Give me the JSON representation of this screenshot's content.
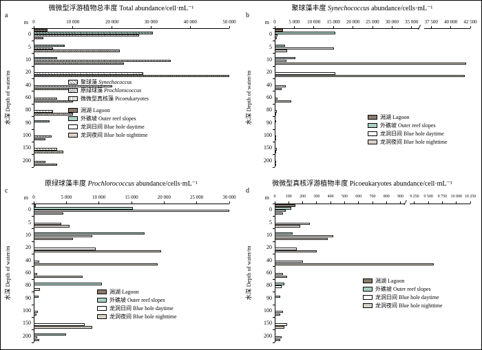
{
  "figure": {
    "y_axis_label": "水深 Depth of water/m",
    "y_unit": "m",
    "depth_labels": [
      "0",
      "5",
      "10",
      "20",
      "40",
      "60",
      "80",
      "90",
      "100",
      "150",
      "200"
    ]
  },
  "palette": {
    "lagoon": "#8a7a6d",
    "outer_reef_slopes": "#abcfc3",
    "blue_hole_daytime": "#ffffff",
    "blue_hole_nighttime": "#d9d1c7"
  },
  "chart_data": {
    "type": "bar",
    "orientation": "horizontal",
    "categories_depth_m": [
      0,
      5,
      10,
      20,
      40,
      60,
      80,
      90,
      100,
      150,
      200
    ],
    "panels": [
      {
        "letter": "a",
        "title_zh": "微微型浮游植物总丰度",
        "title_it": "",
        "title_rest": " Total abundance/cell·mL⁻¹",
        "x_ticks": [
          {
            "label": "0",
            "value": 0
          },
          {
            "label": "10 000",
            "value": 10000
          },
          {
            "label": "20 000",
            "value": 20000
          },
          {
            "label": "30 000",
            "value": 30000
          },
          {
            "label": "40 000",
            "value": 40000
          },
          {
            "label": "50 000",
            "value": 50000
          }
        ],
        "break_after": null,
        "series": [
          {
            "key": "a_lagoon",
            "name": "潟湖 Lagoon",
            "values": [
              3500,
              null,
              null,
              null,
              null,
              null,
              null,
              null,
              null,
              null,
              null
            ]
          },
          {
            "key": "a_outer",
            "name": "外礁坡 Outer reef slopes",
            "values": [
              30500,
              8000,
              6000,
              null,
              null,
              null,
              null,
              4000,
              null,
              null,
              null
            ]
          },
          {
            "key": "a_day",
            "name": "龙洞日间 Blue hole daytime",
            "values": [
              27000,
              5000,
              35000,
              28000,
              20000,
              6000,
              5000,
              null,
              4500,
              6000,
              3000
            ]
          },
          {
            "key": "a_night",
            "name": "龙洞夜间 Blue hole nighttime",
            "values": [
              2500,
              22000,
              23000,
              50000,
              9000,
              10000,
              10000,
              null,
              3000,
              7500,
              6000
            ]
          }
        ],
        "legend": [
          {
            "zh": "聚球藻",
            "en": "Synechococcus",
            "italic": true,
            "swatch": "syn"
          },
          {
            "zh": "原绿球藻",
            "en": "Prochlorococcus",
            "italic": true,
            "swatch": "pro"
          },
          {
            "zh": "微微型真核藻",
            "en": "Picoeukaryotes",
            "italic": false,
            "swatch": "pico"
          },
          {
            "zh": "潟湖",
            "en": "Lagoon",
            "italic": false,
            "swatch": "lagoon"
          },
          {
            "zh": "外礁坡",
            "en": "Outer reef slopes",
            "italic": false,
            "swatch": "outer"
          },
          {
            "zh": "龙洞日间",
            "en": "Blue hole daytime",
            "italic": false,
            "swatch": "day"
          },
          {
            "zh": "龙洞夜间",
            "en": "Blue hole nighttime",
            "italic": false,
            "swatch": "night"
          }
        ]
      },
      {
        "letter": "b",
        "title_zh": "聚球藻丰度",
        "title_it": " Synechococcus",
        "title_rest": " abundance/cells·mL⁻¹",
        "x_ticks": [
          {
            "label": "0",
            "value": 0
          },
          {
            "label": "5 000",
            "value": 5000
          },
          {
            "label": "10 000",
            "value": 10000
          },
          {
            "label": "15 000",
            "value": 15000
          },
          {
            "label": "20 000",
            "value": 20000
          },
          {
            "label": "25 000",
            "value": 25000
          },
          {
            "label": "30 000",
            "value": 30000
          },
          {
            "label": "35 000",
            "value": 35000
          },
          {
            "label": "37 500",
            "value": 37500
          },
          {
            "label": "40 000",
            "value": 40000
          },
          {
            "label": "42 500",
            "value": 42500
          }
        ],
        "break_after": 7,
        "series": [
          {
            "key": "lagoon",
            "name": "潟湖 Lagoon",
            "values": [
              2200,
              null,
              null,
              null,
              null,
              null,
              null,
              null,
              null,
              null,
              null
            ]
          },
          {
            "key": "outer",
            "name": "外礁坡 Outer reef slopes",
            "values": [
              15500,
              2600,
              5200,
              null,
              null,
              null,
              null,
              320,
              null,
              null,
              null
            ]
          },
          {
            "key": "day",
            "name": "龙洞日间 Blue hole daytime",
            "values": [
              700,
              15200,
              3000,
              15500,
              2800,
              700,
              500,
              null,
              420,
              520,
              300
            ]
          },
          {
            "key": "night",
            "name": "龙洞夜间 Blue hole nighttime",
            "values": [
              500,
              3200,
              42000,
              41800,
              1800,
              4200,
              350,
              null,
              280,
              380,
              240
            ]
          }
        ],
        "legend": [
          {
            "zh": "潟湖",
            "en": "Lagoon",
            "italic": false,
            "swatch": "lagoon"
          },
          {
            "zh": "外礁坡",
            "en": "Outer reef slopes",
            "italic": false,
            "swatch": "outer"
          },
          {
            "zh": "龙洞日间",
            "en": "Blue hole daytime",
            "italic": false,
            "swatch": "day"
          },
          {
            "zh": "龙洞夜间",
            "en": "Blue hole nighttime",
            "italic": false,
            "swatch": "night"
          }
        ]
      },
      {
        "letter": "c",
        "title_zh": "原绿球藻丰度",
        "title_it": " Prochlorococcus",
        "title_rest": " abundance/cells·mL⁻¹",
        "x_ticks": [
          {
            "label": "0",
            "value": 0
          },
          {
            "label": "5 000",
            "value": 5000
          },
          {
            "label": "10 000",
            "value": 10000
          },
          {
            "label": "15 000",
            "value": 15000
          },
          {
            "label": "20 000",
            "value": 20000
          },
          {
            "label": "25 000",
            "value": 25000
          },
          {
            "label": "30 000",
            "value": 30000
          }
        ],
        "break_after": null,
        "series": [
          {
            "key": "lagoon",
            "name": "潟湖 Lagoon",
            "values": [
              300,
              null,
              null,
              null,
              null,
              null,
              null,
              null,
              null,
              null,
              null
            ]
          },
          {
            "key": "outer",
            "name": "外礁坡 Outer reef slopes",
            "values": [
              15200,
              null,
              17000,
              null,
              null,
              null,
              10500,
              700,
              null,
              null,
              5000
            ]
          },
          {
            "key": "day",
            "name": "龙洞日间 Blue hole daytime",
            "values": [
              30000,
              4200,
              9000,
              9500,
              800,
              500,
              null,
              null,
              600,
              7800,
              500
            ]
          },
          {
            "key": "night",
            "name": "龙洞夜间 Blue hole nighttime",
            "values": [
              4500,
              5500,
              6000,
              19500,
              19000,
              7500,
              1000,
              null,
              400,
              9000,
              800
            ]
          }
        ],
        "legend": [
          {
            "zh": "潟湖",
            "en": "Lagoon",
            "italic": false,
            "swatch": "lagoon"
          },
          {
            "zh": "外礁坡",
            "en": "Outer reef slopes",
            "italic": false,
            "swatch": "outer"
          },
          {
            "zh": "龙洞日间",
            "en": "Blue hole daytime",
            "italic": false,
            "swatch": "day"
          },
          {
            "zh": "龙洞夜间",
            "en": "Blue hole nighttime",
            "italic": false,
            "swatch": "night"
          }
        ]
      },
      {
        "letter": "d",
        "title_zh": "微微型真核浮游植物丰度",
        "title_it": "",
        "title_rest": " Picoeukaryotes abundance/cell·mL⁻¹",
        "x_ticks": [
          {
            "label": "0",
            "value": 0
          },
          {
            "label": "100",
            "value": 100
          },
          {
            "label": "200",
            "value": 200
          },
          {
            "label": "300",
            "value": 300
          },
          {
            "label": "400",
            "value": 400
          },
          {
            "label": "500",
            "value": 500
          },
          {
            "label": "600",
            "value": 600
          },
          {
            "label": "700",
            "value": 700
          },
          {
            "label": "800",
            "value": 800
          },
          {
            "label": "900",
            "value": 900
          },
          {
            "label": "9 250",
            "value": 9250
          },
          {
            "label": "9 500",
            "value": 9500
          },
          {
            "label": "9 750",
            "value": 9750
          },
          {
            "label": "10 000",
            "value": 10000
          },
          {
            "label": "10 250",
            "value": 10250
          }
        ],
        "break_after": 9,
        "series": [
          {
            "key": "lagoon",
            "name": "潟湖 Lagoon",
            "values": [
              150,
              null,
              null,
              null,
              null,
              null,
              null,
              null,
              null,
              null,
              null
            ]
          },
          {
            "key": "outer",
            "name": "外礁坡 Outer reef slopes",
            "values": [
              120,
              null,
              130,
              null,
              null,
              null,
              70,
              40,
              null,
              null,
              null
            ]
          },
          {
            "key": "day",
            "name": "龙洞日间 Blue hole daytime",
            "values": [
              80,
              250,
              420,
              160,
              200,
              60,
              50,
              null,
              60,
              90,
              50
            ]
          },
          {
            "key": "night",
            "name": "龙洞夜间 Blue hole nighttime",
            "values": [
              60,
              180,
              380,
              300,
              9600,
              90,
              null,
              null,
              40,
              70,
              40
            ]
          }
        ],
        "legend": [
          {
            "zh": "潟湖",
            "en": "Lagoon",
            "italic": false,
            "swatch": "lagoon"
          },
          {
            "zh": "外礁坡",
            "en": "Outer reef slopes",
            "italic": false,
            "swatch": "outer"
          },
          {
            "zh": "龙洞日间",
            "en": "Blue hole daytime",
            "italic": false,
            "swatch": "day"
          },
          {
            "zh": "龙洞夜间",
            "en": "Blue hole nighttime",
            "italic": false,
            "swatch": "night"
          }
        ]
      }
    ]
  }
}
